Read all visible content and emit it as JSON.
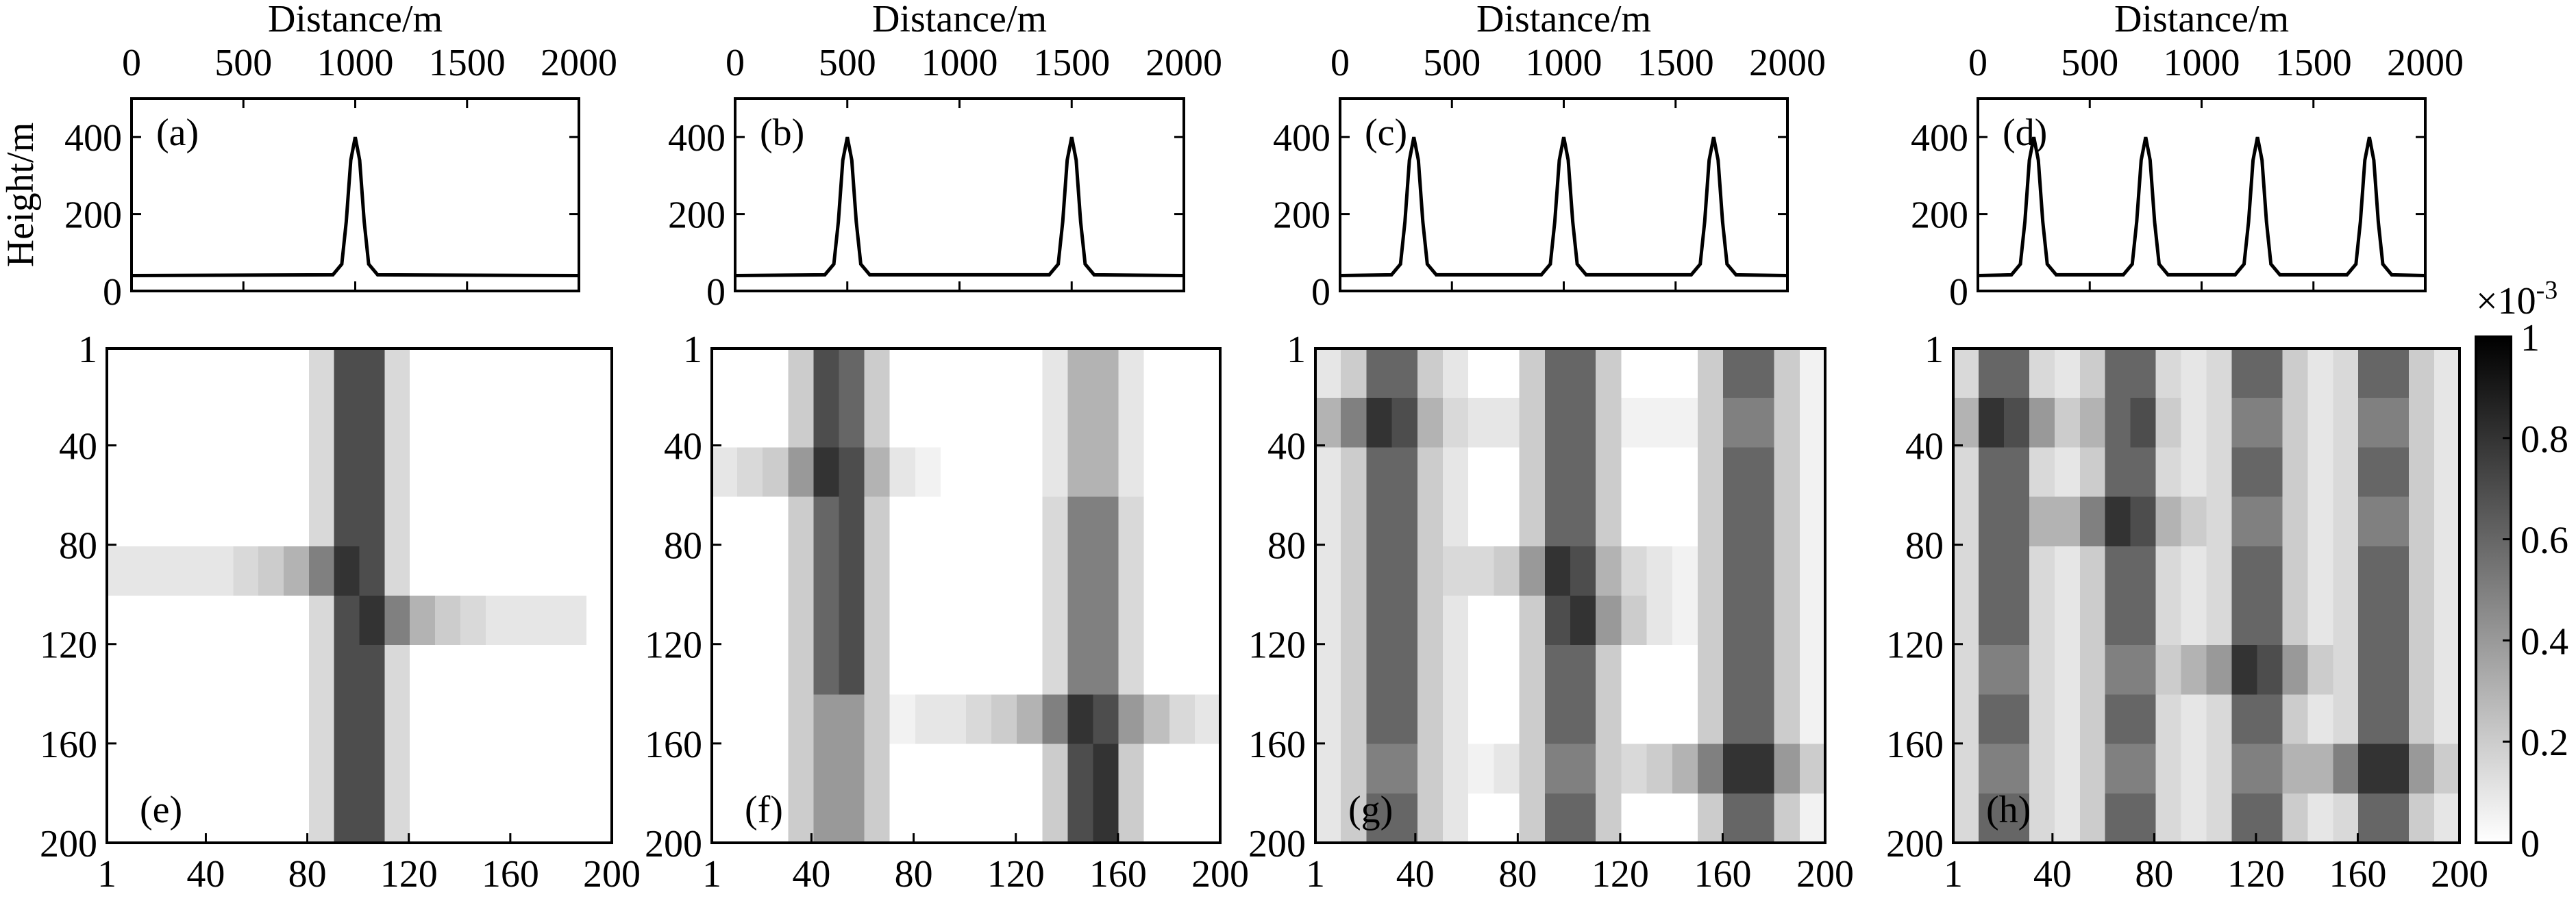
{
  "chart_data": [
    {
      "type": "line",
      "title": "Distance/m",
      "ylabel": "Height/m",
      "panel_label": "(a)",
      "color": "#000000",
      "x": [
        0,
        900,
        940,
        960,
        980,
        1000,
        1020,
        1040,
        1060,
        1100,
        2000
      ],
      "values": [
        40,
        42,
        70,
        180,
        340,
        400,
        340,
        180,
        70,
        42,
        40
      ],
      "xlim": [
        0,
        2000
      ],
      "xticks": [
        0,
        500,
        1000,
        1500,
        2000
      ],
      "ylim": [
        0,
        500
      ],
      "yticks": [
        0,
        200,
        400
      ]
    },
    {
      "type": "line",
      "title": "Distance/m",
      "panel_label": "(b)",
      "color": "#000000",
      "x": [
        0,
        400,
        440,
        460,
        480,
        500,
        520,
        540,
        560,
        600,
        1400,
        1440,
        1460,
        1480,
        1500,
        1520,
        1540,
        1560,
        1600,
        2000
      ],
      "values": [
        40,
        42,
        70,
        180,
        340,
        400,
        340,
        180,
        70,
        42,
        42,
        70,
        180,
        340,
        400,
        340,
        180,
        70,
        42,
        40
      ],
      "xlim": [
        0,
        2000
      ],
      "xticks": [
        0,
        500,
        1000,
        1500,
        2000
      ],
      "ylim": [
        0,
        500
      ],
      "yticks": [
        0,
        200,
        400
      ]
    },
    {
      "type": "line",
      "title": "Distance/m",
      "panel_label": "(c)",
      "color": "#000000",
      "x": [
        0,
        230,
        270,
        290,
        310,
        330,
        350,
        370,
        390,
        430,
        900,
        940,
        960,
        980,
        1000,
        1020,
        1040,
        1060,
        1100,
        1570,
        1610,
        1630,
        1650,
        1670,
        1690,
        1710,
        1730,
        1770,
        2000
      ],
      "values": [
        40,
        42,
        70,
        180,
        340,
        400,
        340,
        180,
        70,
        42,
        42,
        70,
        180,
        340,
        400,
        340,
        180,
        70,
        42,
        42,
        70,
        180,
        340,
        400,
        340,
        180,
        70,
        42,
        40
      ],
      "xlim": [
        0,
        2000
      ],
      "xticks": [
        0,
        500,
        1000,
        1500,
        2000
      ],
      "ylim": [
        0,
        500
      ],
      "yticks": [
        0,
        200,
        400
      ]
    },
    {
      "type": "line",
      "title": "Distance/m",
      "panel_label": "(d)",
      "color": "#000000",
      "x": [
        0,
        150,
        190,
        210,
        230,
        250,
        270,
        290,
        310,
        350,
        650,
        690,
        710,
        730,
        750,
        770,
        790,
        810,
        850,
        1150,
        1190,
        1210,
        1230,
        1250,
        1270,
        1290,
        1310,
        1350,
        1650,
        1690,
        1710,
        1730,
        1750,
        1770,
        1790,
        1810,
        1850,
        2000
      ],
      "values": [
        40,
        42,
        70,
        180,
        340,
        400,
        340,
        180,
        70,
        42,
        42,
        70,
        180,
        340,
        400,
        340,
        180,
        70,
        42,
        42,
        70,
        180,
        340,
        400,
        340,
        180,
        70,
        42,
        42,
        70,
        180,
        340,
        400,
        340,
        180,
        70,
        42,
        40
      ],
      "xlim": [
        0,
        2000
      ],
      "xticks": [
        0,
        500,
        1000,
        1500,
        2000
      ],
      "ylim": [
        0,
        500
      ],
      "yticks": [
        0,
        200,
        400
      ]
    },
    {
      "type": "heatmap",
      "panel_label": "(e)",
      "xlim": [
        1,
        200
      ],
      "xticks": [
        1,
        40,
        80,
        120,
        160,
        200
      ],
      "ylim": [
        1,
        200
      ],
      "yticks": [
        1,
        40,
        80,
        120,
        160,
        200
      ],
      "y_inverted": true,
      "values": [
        [
          0,
          0,
          0,
          0,
          0,
          0,
          0,
          0,
          0.15,
          0.7,
          0.7,
          0.15,
          0,
          0,
          0,
          0,
          0,
          0,
          0,
          0
        ],
        [
          0,
          0,
          0,
          0,
          0,
          0,
          0,
          0,
          0.15,
          0.7,
          0.7,
          0.15,
          0,
          0,
          0,
          0,
          0,
          0,
          0,
          0
        ],
        [
          0,
          0,
          0,
          0,
          0,
          0,
          0,
          0,
          0.15,
          0.7,
          0.7,
          0.15,
          0,
          0,
          0,
          0,
          0,
          0,
          0,
          0
        ],
        [
          0,
          0,
          0,
          0,
          0,
          0,
          0,
          0,
          0.15,
          0.7,
          0.7,
          0.15,
          0,
          0,
          0,
          0,
          0,
          0,
          0,
          0
        ],
        [
          0.1,
          0.1,
          0.1,
          0.1,
          0.1,
          0.15,
          0.2,
          0.3,
          0.5,
          0.8,
          0.7,
          0.15,
          0,
          0,
          0,
          0,
          0,
          0,
          0,
          0
        ],
        [
          0,
          0,
          0,
          0,
          0,
          0,
          0,
          0,
          0.15,
          0.7,
          0.8,
          0.5,
          0.3,
          0.2,
          0.15,
          0.1,
          0.1,
          0.1,
          0.1,
          0
        ],
        [
          0,
          0,
          0,
          0,
          0,
          0,
          0,
          0,
          0.15,
          0.7,
          0.7,
          0.15,
          0,
          0,
          0,
          0,
          0,
          0,
          0,
          0
        ],
        [
          0,
          0,
          0,
          0,
          0,
          0,
          0,
          0,
          0.15,
          0.7,
          0.7,
          0.15,
          0,
          0,
          0,
          0,
          0,
          0,
          0,
          0
        ],
        [
          0,
          0,
          0,
          0,
          0,
          0,
          0,
          0,
          0.15,
          0.7,
          0.7,
          0.15,
          0,
          0,
          0,
          0,
          0,
          0,
          0,
          0
        ],
        [
          0,
          0,
          0,
          0,
          0,
          0,
          0,
          0,
          0.15,
          0.7,
          0.7,
          0.15,
          0,
          0,
          0,
          0,
          0,
          0,
          0,
          0
        ]
      ]
    },
    {
      "type": "heatmap",
      "panel_label": "(f)",
      "xlim": [
        1,
        200
      ],
      "xticks": [
        1,
        40,
        80,
        120,
        160,
        200
      ],
      "ylim": [
        1,
        200
      ],
      "yticks": [
        1,
        40,
        80,
        120,
        160,
        200
      ],
      "y_inverted": true,
      "values": [
        [
          0,
          0,
          0,
          0.2,
          0.7,
          0.6,
          0.2,
          0,
          0,
          0,
          0,
          0,
          0,
          0.1,
          0.3,
          0.3,
          0.1,
          0,
          0,
          0
        ],
        [
          0,
          0,
          0,
          0.2,
          0.7,
          0.6,
          0.2,
          0,
          0,
          0,
          0,
          0,
          0,
          0.1,
          0.3,
          0.3,
          0.1,
          0,
          0,
          0
        ],
        [
          0.1,
          0.15,
          0.2,
          0.4,
          0.8,
          0.7,
          0.3,
          0.1,
          0.05,
          0,
          0,
          0,
          0,
          0.1,
          0.3,
          0.3,
          0.1,
          0,
          0,
          0
        ],
        [
          0,
          0,
          0,
          0.2,
          0.6,
          0.7,
          0.2,
          0,
          0,
          0,
          0,
          0,
          0,
          0.15,
          0.5,
          0.5,
          0.15,
          0,
          0,
          0
        ],
        [
          0,
          0,
          0,
          0.2,
          0.6,
          0.7,
          0.2,
          0,
          0,
          0,
          0,
          0,
          0,
          0.15,
          0.5,
          0.5,
          0.15,
          0,
          0,
          0
        ],
        [
          0,
          0,
          0,
          0.2,
          0.6,
          0.7,
          0.2,
          0,
          0,
          0,
          0,
          0,
          0,
          0.15,
          0.5,
          0.5,
          0.15,
          0,
          0,
          0
        ],
        [
          0,
          0,
          0,
          0.2,
          0.6,
          0.7,
          0.2,
          0,
          0,
          0,
          0,
          0,
          0,
          0.15,
          0.5,
          0.5,
          0.15,
          0,
          0,
          0
        ],
        [
          0,
          0,
          0,
          0.2,
          0.4,
          0.4,
          0.2,
          0.05,
          0.1,
          0.1,
          0.15,
          0.2,
          0.3,
          0.5,
          0.8,
          0.7,
          0.4,
          0.25,
          0.15,
          0.1
        ],
        [
          0,
          0,
          0,
          0.2,
          0.4,
          0.4,
          0.2,
          0,
          0,
          0,
          0,
          0,
          0,
          0.2,
          0.7,
          0.8,
          0.2,
          0,
          0,
          0
        ],
        [
          0,
          0,
          0,
          0.2,
          0.4,
          0.4,
          0.2,
          0,
          0,
          0,
          0,
          0,
          0,
          0.2,
          0.7,
          0.8,
          0.2,
          0,
          0,
          0
        ]
      ]
    },
    {
      "type": "heatmap",
      "panel_label": "(g)",
      "xlim": [
        1,
        200
      ],
      "xticks": [
        1,
        40,
        80,
        120,
        160,
        200
      ],
      "ylim": [
        1,
        200
      ],
      "yticks": [
        1,
        40,
        80,
        120,
        160,
        200
      ],
      "y_inverted": true,
      "values": [
        [
          0.1,
          0.2,
          0.6,
          0.6,
          0.2,
          0.1,
          0,
          0,
          0.2,
          0.6,
          0.6,
          0.2,
          0,
          0,
          0,
          0.2,
          0.6,
          0.6,
          0.2,
          0.05
        ],
        [
          0.3,
          0.5,
          0.8,
          0.7,
          0.3,
          0.15,
          0.1,
          0.1,
          0.2,
          0.6,
          0.6,
          0.2,
          0.05,
          0.05,
          0.05,
          0.2,
          0.5,
          0.5,
          0.2,
          0.05
        ],
        [
          0.1,
          0.2,
          0.6,
          0.6,
          0.2,
          0.1,
          0,
          0,
          0.2,
          0.6,
          0.6,
          0.2,
          0,
          0,
          0,
          0.2,
          0.6,
          0.6,
          0.2,
          0.05
        ],
        [
          0.1,
          0.2,
          0.6,
          0.6,
          0.2,
          0.1,
          0,
          0,
          0.2,
          0.6,
          0.6,
          0.2,
          0,
          0,
          0,
          0.2,
          0.6,
          0.6,
          0.2,
          0.05
        ],
        [
          0.1,
          0.2,
          0.6,
          0.6,
          0.2,
          0.15,
          0.15,
          0.2,
          0.4,
          0.8,
          0.7,
          0.3,
          0.15,
          0.1,
          0.05,
          0.2,
          0.6,
          0.6,
          0.2,
          0.05
        ],
        [
          0.1,
          0.2,
          0.6,
          0.6,
          0.2,
          0.1,
          0,
          0,
          0.2,
          0.7,
          0.8,
          0.4,
          0.2,
          0.1,
          0.05,
          0.2,
          0.6,
          0.6,
          0.2,
          0.05
        ],
        [
          0.1,
          0.2,
          0.6,
          0.6,
          0.2,
          0.1,
          0,
          0,
          0.2,
          0.6,
          0.6,
          0.2,
          0,
          0,
          0,
          0.2,
          0.6,
          0.6,
          0.2,
          0.05
        ],
        [
          0.1,
          0.2,
          0.6,
          0.6,
          0.2,
          0.1,
          0,
          0,
          0.2,
          0.6,
          0.6,
          0.2,
          0,
          0,
          0,
          0.2,
          0.6,
          0.6,
          0.2,
          0.05
        ],
        [
          0.1,
          0.2,
          0.5,
          0.5,
          0.2,
          0.1,
          0.05,
          0.1,
          0.2,
          0.5,
          0.5,
          0.2,
          0.15,
          0.2,
          0.3,
          0.5,
          0.8,
          0.8,
          0.4,
          0.2
        ],
        [
          0.1,
          0.2,
          0.6,
          0.6,
          0.2,
          0.1,
          0,
          0,
          0.2,
          0.6,
          0.6,
          0.2,
          0,
          0,
          0,
          0.2,
          0.6,
          0.6,
          0.2,
          0.05
        ]
      ]
    },
    {
      "type": "heatmap",
      "panel_label": "(h)",
      "xlim": [
        1,
        200
      ],
      "xticks": [
        1,
        40,
        80,
        120,
        160,
        200
      ],
      "ylim": [
        1,
        200
      ],
      "yticks": [
        1,
        40,
        80,
        120,
        160,
        200
      ],
      "y_inverted": true,
      "values": [
        [
          0.15,
          0.6,
          0.6,
          0.15,
          0.1,
          0.2,
          0.6,
          0.6,
          0.15,
          0.1,
          0.15,
          0.6,
          0.6,
          0.2,
          0.1,
          0.15,
          0.6,
          0.6,
          0.2,
          0.1
        ],
        [
          0.3,
          0.8,
          0.7,
          0.4,
          0.2,
          0.3,
          0.6,
          0.7,
          0.2,
          0.1,
          0.15,
          0.5,
          0.5,
          0.2,
          0.1,
          0.15,
          0.5,
          0.5,
          0.2,
          0.1
        ],
        [
          0.15,
          0.6,
          0.6,
          0.15,
          0.1,
          0.2,
          0.6,
          0.6,
          0.15,
          0.1,
          0.15,
          0.6,
          0.6,
          0.2,
          0.1,
          0.15,
          0.6,
          0.6,
          0.2,
          0.1
        ],
        [
          0.15,
          0.6,
          0.6,
          0.3,
          0.3,
          0.5,
          0.8,
          0.7,
          0.3,
          0.2,
          0.15,
          0.5,
          0.5,
          0.2,
          0.1,
          0.15,
          0.5,
          0.5,
          0.2,
          0.1
        ],
        [
          0.15,
          0.6,
          0.6,
          0.15,
          0.1,
          0.2,
          0.6,
          0.6,
          0.15,
          0.1,
          0.15,
          0.6,
          0.6,
          0.2,
          0.1,
          0.15,
          0.6,
          0.6,
          0.2,
          0.1
        ],
        [
          0.15,
          0.6,
          0.6,
          0.15,
          0.1,
          0.2,
          0.6,
          0.6,
          0.15,
          0.1,
          0.15,
          0.6,
          0.6,
          0.2,
          0.1,
          0.15,
          0.6,
          0.6,
          0.2,
          0.1
        ],
        [
          0.15,
          0.5,
          0.5,
          0.15,
          0.1,
          0.2,
          0.5,
          0.5,
          0.2,
          0.3,
          0.4,
          0.8,
          0.7,
          0.4,
          0.2,
          0.15,
          0.6,
          0.6,
          0.2,
          0.1
        ],
        [
          0.15,
          0.6,
          0.6,
          0.15,
          0.1,
          0.2,
          0.6,
          0.6,
          0.15,
          0.1,
          0.15,
          0.6,
          0.6,
          0.2,
          0.1,
          0.15,
          0.6,
          0.6,
          0.2,
          0.1
        ],
        [
          0.15,
          0.5,
          0.5,
          0.15,
          0.1,
          0.2,
          0.5,
          0.5,
          0.15,
          0.1,
          0.15,
          0.5,
          0.5,
          0.3,
          0.3,
          0.5,
          0.8,
          0.8,
          0.4,
          0.2
        ],
        [
          0.15,
          0.6,
          0.6,
          0.15,
          0.1,
          0.2,
          0.6,
          0.6,
          0.15,
          0.1,
          0.15,
          0.6,
          0.6,
          0.2,
          0.1,
          0.15,
          0.6,
          0.6,
          0.2,
          0.1
        ]
      ]
    }
  ],
  "colorbar": {
    "label": "×10",
    "exponent": "-3",
    "lim": [
      0,
      1
    ],
    "ticks": [
      0,
      0.2,
      0.4,
      0.6,
      0.8,
      1
    ],
    "colors": [
      "#ffffff",
      "#000000"
    ]
  }
}
